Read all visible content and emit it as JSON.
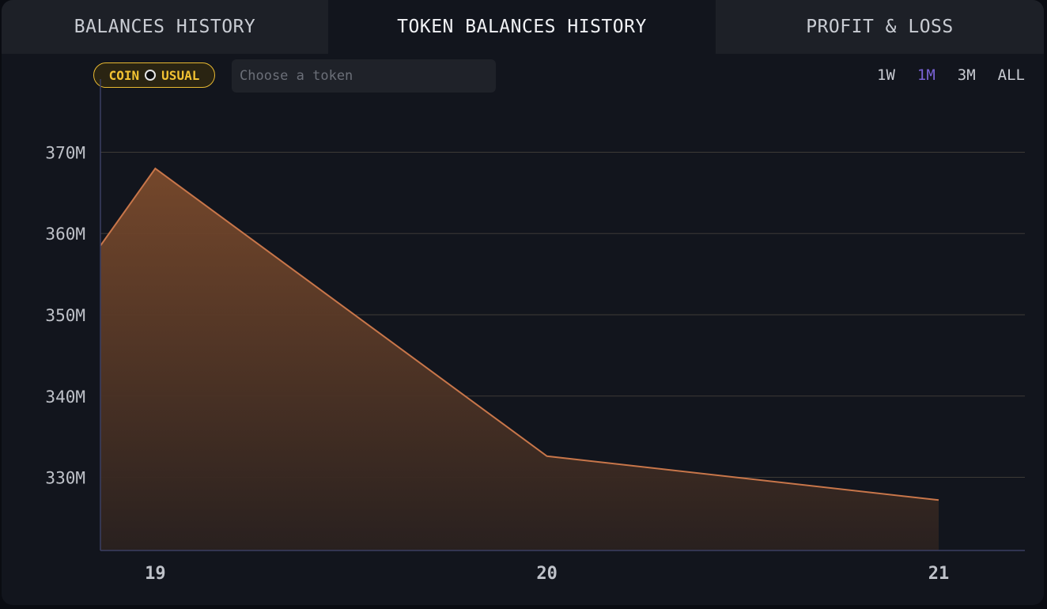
{
  "tabs": [
    {
      "label": "BALANCES HISTORY",
      "active": false
    },
    {
      "label": "TOKEN BALANCES HISTORY",
      "active": true
    },
    {
      "label": "PROFIT & LOSS",
      "active": false
    }
  ],
  "token_badge": {
    "left": "COIN",
    "right": "USUAL",
    "icon": "coin-icon"
  },
  "token_search": {
    "placeholder": "Choose a token",
    "value": ""
  },
  "time_ranges": {
    "items": [
      "1W",
      "1M",
      "3M",
      "ALL"
    ],
    "selected": "1M"
  },
  "colors": {
    "accent": "#7a63d6",
    "badge": "#f2c233",
    "line": "#c8764a"
  },
  "chart_data": {
    "type": "area",
    "title": "",
    "xlabel": "",
    "ylabel": "",
    "x_ticks": [
      "19",
      "20",
      "21"
    ],
    "y_ticks": [
      "330M",
      "340M",
      "350M",
      "360M",
      "370M"
    ],
    "ylim": [
      321000000,
      379000000
    ],
    "grid": true,
    "series": [
      {
        "points": [
          {
            "x": 18.86,
            "y": 358500000
          },
          {
            "x": 19.0,
            "y": 368000000
          },
          {
            "x": 20.0,
            "y": 332600000
          },
          {
            "x": 21.0,
            "y": 327200000
          }
        ]
      }
    ]
  }
}
